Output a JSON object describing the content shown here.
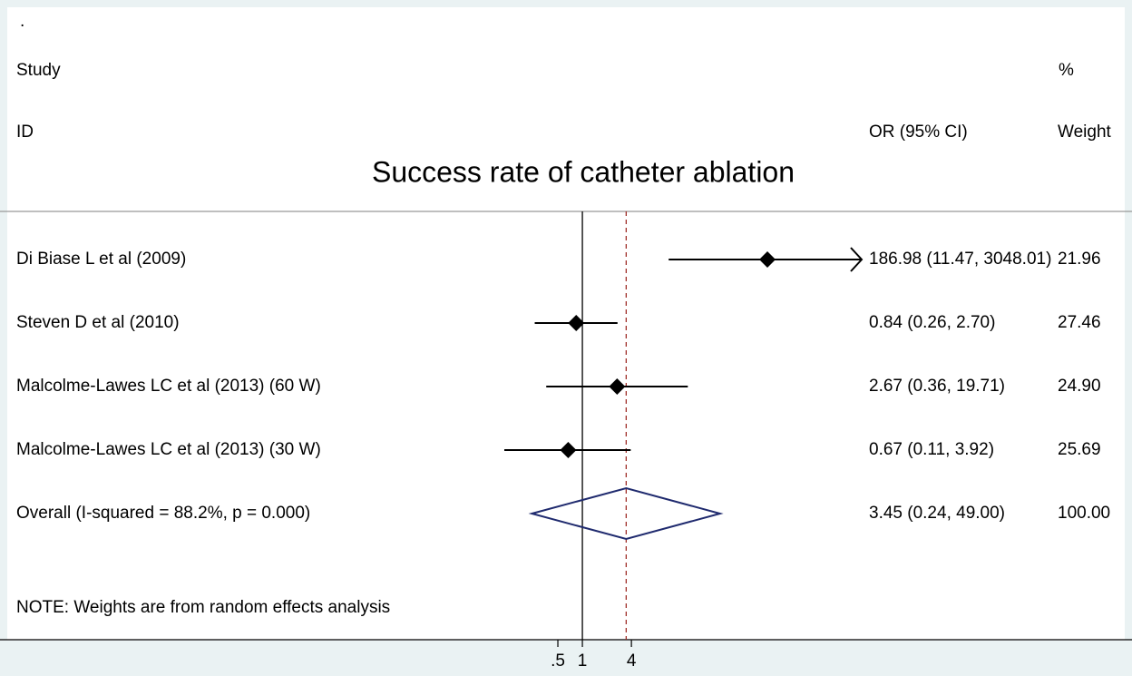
{
  "chart_data": {
    "type": "forest",
    "title": "Success rate of catheter ablation",
    "header": {
      "dot": ".",
      "study": "Study",
      "id": "ID",
      "pct": "%",
      "or": "OR (95% CI)",
      "weight": "Weight"
    },
    "studies": [
      {
        "name": "Di Biase L et al (2009)",
        "or": 186.98,
        "lo": 11.47,
        "hi": 3048.01,
        "ci_label": "186.98 (11.47, 3048.01)",
        "weight": 21.96
      },
      {
        "name": "Steven D et al (2010)",
        "or": 0.84,
        "lo": 0.26,
        "hi": 2.7,
        "ci_label": "0.84 (0.26, 2.70)",
        "weight": 27.46
      },
      {
        "name": "Malcolme-Lawes LC et al (2013) (60 W)",
        "or": 2.67,
        "lo": 0.36,
        "hi": 19.71,
        "ci_label": "2.67 (0.36, 19.71)",
        "weight": {
          "value": 24.9,
          "label": "24.90"
        }
      },
      {
        "name": "Malcolme-Lawes LC et al (2013) (30 W)",
        "or": 0.67,
        "lo": 0.11,
        "hi": 3.92,
        "ci_label": "0.67 (0.11, 3.92)",
        "weight": 25.69
      }
    ],
    "overall": {
      "name": "Overall  (I-squared = 88.2%, p = 0.000)",
      "or": 3.45,
      "lo": 0.24,
      "hi": 49,
      "ci_label": "3.45 (0.24, 49.00)",
      "weight": {
        "value": 100,
        "label": "100.00"
      }
    },
    "note": "NOTE: Weights are from random effects analysis",
    "xlim": [
      0.073,
      2690
    ],
    "xticks": [
      {
        "value": 0.5,
        "label": ".5"
      },
      1,
      4
    ],
    "log_x": true,
    "color": "#000000",
    "overall_color": "#1f2a6e",
    "ref_color": "#a0302a"
  }
}
